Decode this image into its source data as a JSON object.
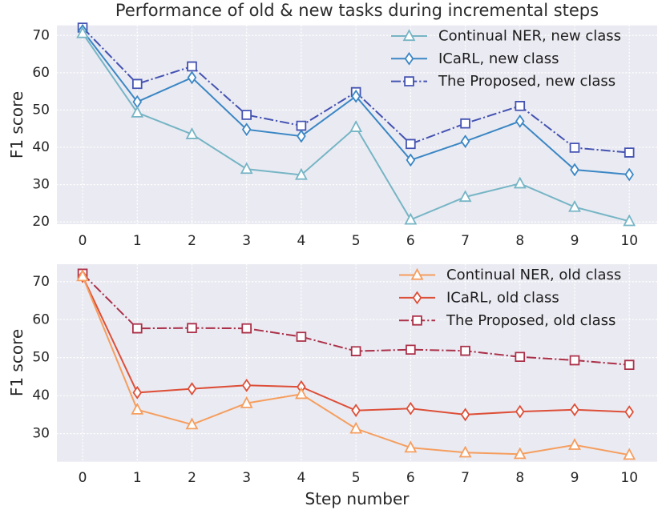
{
  "figure": {
    "title": "Performance of old & new tasks during incremental steps",
    "xlabel": "Step number"
  },
  "style": {
    "figure_bg": "#ffffff",
    "plot_bg": "#eaeaf2",
    "grid_color": "#ffffff",
    "tick_color": "#262626",
    "title_color": "#2b2b2b",
    "marker_fill": "#ffffff"
  },
  "chart_data": [
    {
      "type": "line",
      "panel": "top",
      "title": "",
      "xlabel": "",
      "ylabel": "F1 score",
      "x": [
        0,
        1,
        2,
        3,
        4,
        5,
        6,
        7,
        8,
        9,
        10
      ],
      "xlim": [
        -0.47,
        10.51
      ],
      "ylim": [
        19.4,
        72.7
      ],
      "yticks": [
        20,
        30,
        40,
        50,
        60,
        70
      ],
      "grid": "on",
      "legend_position": "upper right",
      "series": [
        {
          "name": "Continual NER, new class",
          "marker": "triangle",
          "linestyle": "solid",
          "color": "#76b5c5",
          "values": [
            70.6,
            49.3,
            43.5,
            34.2,
            32.6,
            45.4,
            20.6,
            26.7,
            30.3,
            24.0,
            20.2
          ]
        },
        {
          "name": "ICaRL, new class",
          "marker": "diamond",
          "linestyle": "solid",
          "color": "#3b87c4",
          "values": [
            71.3,
            52.2,
            58.7,
            44.8,
            43.0,
            53.7,
            36.6,
            41.6,
            47.0,
            34.0,
            32.7
          ]
        },
        {
          "name": "The Proposed, new class",
          "marker": "square",
          "linestyle": "dashdot",
          "color": "#4453b2",
          "values": [
            72.1,
            57.0,
            61.7,
            48.7,
            45.8,
            54.8,
            40.9,
            46.4,
            51.1,
            39.9,
            38.6
          ]
        }
      ]
    },
    {
      "type": "line",
      "panel": "bottom",
      "title": "",
      "xlabel": "Step number",
      "ylabel": "F1 score",
      "x": [
        0,
        1,
        2,
        3,
        4,
        5,
        6,
        7,
        8,
        9,
        10
      ],
      "xlim": [
        -0.47,
        10.51
      ],
      "ylim": [
        22.6,
        74.6
      ],
      "yticks": [
        30,
        40,
        50,
        60,
        70
      ],
      "grid": "on",
      "legend_position": "upper right",
      "series": [
        {
          "name": "Continual NER, old class",
          "marker": "triangle",
          "linestyle": "solid",
          "color": "#f59e5e",
          "values": [
            71.4,
            36.3,
            32.4,
            38.0,
            40.4,
            31.3,
            26.3,
            25.0,
            24.6,
            27.0,
            24.4
          ]
        },
        {
          "name": "ICaRL, old class",
          "marker": "diamond",
          "linestyle": "solid",
          "color": "#dd4f38",
          "values": [
            71.4,
            40.8,
            41.8,
            42.7,
            42.3,
            36.1,
            36.6,
            35.0,
            35.8,
            36.3,
            35.7
          ]
        },
        {
          "name": "The Proposed, old class",
          "marker": "square",
          "linestyle": "dashdot",
          "color": "#ab3048",
          "values": [
            72.1,
            57.7,
            57.8,
            57.7,
            55.5,
            51.7,
            52.1,
            51.8,
            50.2,
            49.3,
            48.1
          ]
        }
      ]
    }
  ]
}
